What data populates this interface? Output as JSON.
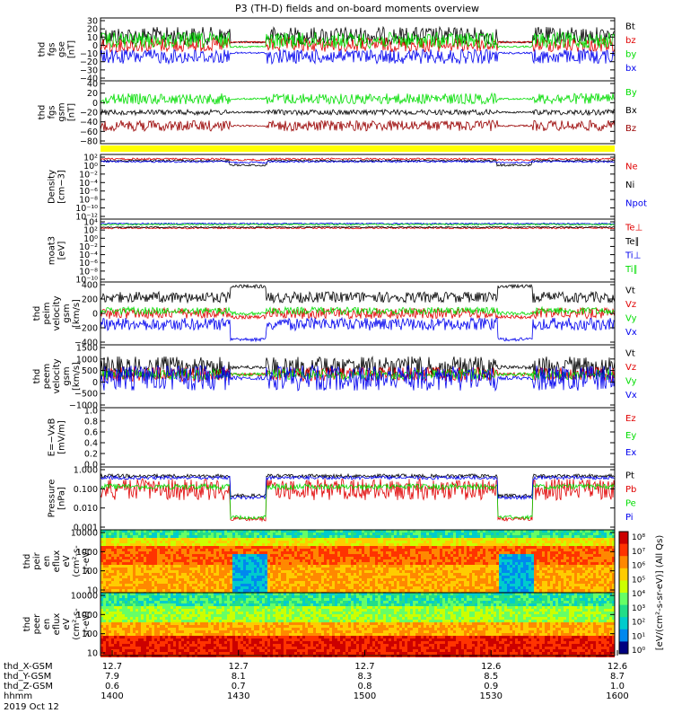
{
  "title": "P3 (TH-D) fields and on-board moments overview",
  "colors": {
    "black": "#000000",
    "red": "#e00000",
    "green": "#00dd00",
    "blue": "#0000ee",
    "darkred": "#990000",
    "yellow": "#ffff00"
  },
  "chart_data": [
    {
      "type": "line",
      "ylabel_lines": [
        "thd",
        "fgs",
        "gse",
        "[nT]"
      ],
      "ylim": [
        -40,
        30
      ],
      "ticks": [
        "30",
        "20",
        "10",
        "0",
        "−10",
        "−20",
        "−30",
        "−40"
      ],
      "series": [
        {
          "name": "Bt",
          "color": "#000000"
        },
        {
          "name": "bz",
          "color": "#e00000"
        },
        {
          "name": "by",
          "color": "#00dd00"
        },
        {
          "name": "bx",
          "color": "#0000ee"
        }
      ]
    },
    {
      "type": "line",
      "ylabel_lines": [
        "thd",
        "fgs",
        "gsm",
        "[nT]"
      ],
      "ylim": [
        -90,
        40
      ],
      "ticks": [
        "40",
        "20",
        "0",
        "−20",
        "−40",
        "−60",
        "−80"
      ],
      "series": [
        {
          "name": "By",
          "color": "#00dd00"
        },
        {
          "name": "Bx",
          "color": "#000000"
        },
        {
          "name": "Bz",
          "color": "#990000"
        }
      ]
    },
    {
      "type": "line",
      "ylabel_lines": [
        "Density",
        "[cm−3]"
      ],
      "yscale": "log",
      "ticks": [
        "10²",
        "10⁰",
        "10⁻²",
        "10⁻⁴",
        "10⁻⁶",
        "10⁻⁸",
        "10⁻¹⁰",
        "10⁻¹²"
      ],
      "series": [
        {
          "name": "Ne",
          "color": "#e00000"
        },
        {
          "name": "Ni",
          "color": "#000000"
        },
        {
          "name": "Npot",
          "color": "#0000ee"
        }
      ]
    },
    {
      "type": "line",
      "ylabel_lines": [
        "moat3",
        "[eV]"
      ],
      "yscale": "log",
      "ticks": [
        "10⁴",
        "10²",
        "10⁰",
        "10⁻²",
        "10⁻⁴",
        "10⁻⁶",
        "10⁻⁸",
        "10⁻¹⁰"
      ],
      "series": [
        {
          "name": "Te⊥",
          "color": "#e00000"
        },
        {
          "name": "Te∥",
          "color": "#000000"
        },
        {
          "name": "Ti⊥",
          "color": "#0000ee"
        },
        {
          "name": "Ti∥",
          "color": "#00dd00"
        }
      ]
    },
    {
      "type": "line",
      "ylabel_lines": [
        "thd",
        "peim",
        "velocity",
        "gsm",
        "[km/s]"
      ],
      "ylim": [
        -400,
        400
      ],
      "ticks": [
        "400",
        "200",
        "0",
        "−200",
        "−400"
      ],
      "series": [
        {
          "name": "Vt",
          "color": "#000000"
        },
        {
          "name": "Vz",
          "color": "#e00000"
        },
        {
          "name": "Vy",
          "color": "#00dd00"
        },
        {
          "name": "Vx",
          "color": "#0000ee"
        }
      ]
    },
    {
      "type": "line",
      "ylabel_lines": [
        "thd",
        "peem",
        "velocity",
        "gsm",
        "[km/s]"
      ],
      "ylim": [
        -1500,
        1500
      ],
      "ticks": [
        "1500",
        "1000",
        "500",
        "0",
        "−500",
        "−1000"
      ],
      "series": [
        {
          "name": "Vt",
          "color": "#000000"
        },
        {
          "name": "Vz",
          "color": "#e00000"
        },
        {
          "name": "Vy",
          "color": "#00dd00"
        },
        {
          "name": "Vx",
          "color": "#0000ee"
        }
      ]
    },
    {
      "type": "line",
      "ylabel_lines": [
        "E=−VxB",
        "[mV/m]"
      ],
      "ylim": [
        0,
        1
      ],
      "ticks": [
        "1.0",
        "0.8",
        "0.6",
        "0.4",
        "0.2",
        "0.0"
      ],
      "series": [
        {
          "name": "Ez",
          "color": "#e00000"
        },
        {
          "name": "Ey",
          "color": "#00dd00"
        },
        {
          "name": "Ex",
          "color": "#0000ee"
        }
      ]
    },
    {
      "type": "line",
      "ylabel_lines": [
        "Pressure",
        "[nPa]"
      ],
      "yscale": "log",
      "ticks": [
        "1.000",
        "0.100",
        "0.010",
        "0.001"
      ],
      "series": [
        {
          "name": "Pt",
          "color": "#000000"
        },
        {
          "name": "Pb",
          "color": "#e00000"
        },
        {
          "name": "Pe",
          "color": "#00dd00"
        },
        {
          "name": "Pi",
          "color": "#0000ee"
        }
      ]
    },
    {
      "type": "heatmap",
      "ylabel_lines": [
        "thd",
        "peir",
        "en",
        "eflux",
        "eV",
        "(cm²-s-",
        "sr-eV)"
      ],
      "yscale": "log",
      "ticks": [
        "10000",
        "1000",
        "100",
        "10"
      ]
    },
    {
      "type": "heatmap",
      "ylabel_lines": [
        "thd",
        "peer",
        "en",
        "eflux",
        "eV",
        "(cm²-s-",
        "sr-eV)"
      ],
      "yscale": "log",
      "ticks": [
        "10000",
        "1000",
        "100",
        "10"
      ]
    }
  ],
  "colorbar": {
    "label": "[eV/(cm²-s-sr-eV)] (All Qs)",
    "ticks": [
      "10⁸",
      "10⁷",
      "10⁶",
      "10⁵",
      "10⁴",
      "10³",
      "10²",
      "10¹",
      "10⁰"
    ]
  },
  "xaxis": {
    "row_labels": [
      "thd_X-GSM",
      "thd_Y-GSM",
      "thd_Z-GSM",
      "hhmm",
      "2019 Oct 12"
    ],
    "columns": [
      {
        "x": "12.7",
        "y": "7.9",
        "z": "0.6",
        "t": "1400"
      },
      {
        "x": "12.7",
        "y": "8.1",
        "z": "0.7",
        "t": "1430"
      },
      {
        "x": "12.7",
        "y": "8.3",
        "z": "0.8",
        "t": "1500"
      },
      {
        "x": "12.6",
        "y": "8.5",
        "z": "0.9",
        "t": "1530"
      },
      {
        "x": "12.6",
        "y": "8.7",
        "z": "1.0",
        "t": "1600"
      }
    ]
  }
}
